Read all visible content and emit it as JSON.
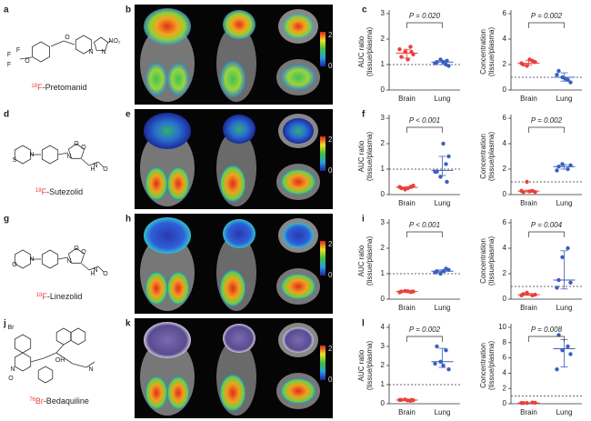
{
  "rows": [
    {
      "structure_letter": "a",
      "image_letter": "b",
      "isotope": "18",
      "element": "F",
      "name": "-Pretomanid",
      "atoms": [
        "F",
        "F",
        "F",
        "O",
        "O",
        "N",
        "N",
        "NO₂"
      ],
      "colorbar_ticks": [
        2,
        0
      ]
    },
    {
      "structure_letter": "d",
      "image_letter": "e",
      "isotope": "18",
      "element": "F",
      "name": "-Sutezolid",
      "atoms": [
        "S",
        "N",
        "N",
        "O",
        "O",
        "H",
        "N",
        "O"
      ],
      "colorbar_ticks": [
        2,
        0
      ]
    },
    {
      "structure_letter": "g",
      "image_letter": "h",
      "isotope": "18",
      "element": "F",
      "name": "-Linezolid",
      "atoms": [
        "O",
        "N",
        "N",
        "O",
        "O",
        "H",
        "N",
        "O"
      ],
      "colorbar_ticks": [
        2,
        0
      ]
    },
    {
      "structure_letter": "j",
      "image_letter": "k",
      "isotope": "76",
      "element": "Br",
      "name": "-Bedaquiline",
      "atoms": [
        "Br",
        "N",
        "O",
        "OH",
        "N"
      ],
      "colorbar_ticks": [
        2,
        0
      ]
    }
  ],
  "chart_data": [
    {
      "type": "strip",
      "letter": "c",
      "ylabel": [
        "AUC ratio",
        "(tissue/plasma)"
      ],
      "categories": [
        "Brain",
        "Lung"
      ],
      "ylim": [
        0,
        3
      ],
      "yticks": [
        0,
        1,
        2,
        3
      ],
      "ref_line": 1,
      "annotation": "P = 0.020",
      "series": [
        {
          "name": "Brain",
          "color": "#e8413c",
          "values": [
            1.3,
            1.7,
            1.5,
            1.4,
            1.6,
            1.2,
            1.5
          ],
          "median": 1.45,
          "range": [
            1.25,
            1.6
          ]
        },
        {
          "name": "Lung",
          "color": "#3b5fc0",
          "values": [
            1.1,
            1.0,
            1.2,
            0.95,
            1.05,
            1.1,
            1.15
          ],
          "median": 1.1,
          "range": [
            1.0,
            1.15
          ]
        }
      ]
    },
    {
      "type": "strip",
      "ylabel": [
        "Concentration",
        "(tissue/plasma)"
      ],
      "categories": [
        "Brain",
        "Lung"
      ],
      "ylim": [
        0,
        6
      ],
      "yticks": [
        0,
        2,
        4,
        6
      ],
      "ref_line": 1,
      "annotation": "P = 0.002",
      "series": [
        {
          "name": "Brain",
          "color": "#e8413c",
          "values": [
            2.0,
            2.3,
            1.9,
            2.2,
            2.1,
            2.4
          ],
          "median": 2.1,
          "range": [
            1.95,
            2.3
          ]
        },
        {
          "name": "Lung",
          "color": "#3b5fc0",
          "values": [
            1.5,
            0.8,
            1.0,
            0.6,
            1.2,
            0.9
          ],
          "median": 1.0,
          "range": [
            0.7,
            1.35
          ]
        }
      ]
    },
    {
      "type": "strip",
      "letter": "f",
      "ylabel": [
        "AUC ratio",
        "(tissue/plasma)"
      ],
      "categories": [
        "Brain",
        "Lung"
      ],
      "ylim": [
        0,
        3
      ],
      "yticks": [
        0,
        1,
        2,
        3
      ],
      "ref_line": 1,
      "annotation": "P < 0.001",
      "series": [
        {
          "name": "Brain",
          "color": "#e8413c",
          "values": [
            0.25,
            0.3,
            0.2,
            0.35,
            0.3,
            0.25,
            0.3
          ],
          "median": 0.28,
          "range": [
            0.25,
            0.3
          ]
        },
        {
          "name": "Lung",
          "color": "#3b5fc0",
          "values": [
            0.9,
            1.2,
            0.7,
            1.5,
            0.9,
            2.0,
            0.5
          ],
          "median": 0.95,
          "range": [
            0.75,
            1.5
          ]
        }
      ]
    },
    {
      "type": "strip",
      "ylabel": [
        "Concentration",
        "(tissue/plasma)"
      ],
      "categories": [
        "Brain",
        "Lung"
      ],
      "ylim": [
        0,
        6
      ],
      "yticks": [
        0,
        2,
        4,
        6
      ],
      "ref_line": 1,
      "annotation": "P = 0.002",
      "series": [
        {
          "name": "Brain",
          "color": "#e8413c",
          "values": [
            0.2,
            0.3,
            1.0,
            0.2,
            0.3,
            0.25
          ],
          "median": 0.28,
          "range": [
            0.2,
            0.35
          ]
        },
        {
          "name": "Lung",
          "color": "#3b5fc0",
          "values": [
            2.2,
            2.0,
            2.4,
            2.3,
            1.9
          ],
          "median": 2.2,
          "range": [
            2.0,
            2.35
          ]
        }
      ]
    },
    {
      "type": "strip",
      "letter": "i",
      "ylabel": [
        "AUC ratio",
        "(tissue/plasma)"
      ],
      "categories": [
        "Brain",
        "Lung"
      ],
      "ylim": [
        0,
        3
      ],
      "yticks": [
        0,
        1,
        2,
        3
      ],
      "ref_line": 1,
      "annotation": "P < 0.001",
      "series": [
        {
          "name": "Brain",
          "color": "#e8413c",
          "values": [
            0.3,
            0.28,
            0.32,
            0.3,
            0.27,
            0.31,
            0.29
          ],
          "median": 0.3,
          "range": [
            0.28,
            0.31
          ]
        },
        {
          "name": "Lung",
          "color": "#3b5fc0",
          "values": [
            1.1,
            1.2,
            1.0,
            1.15,
            1.05,
            1.1
          ],
          "median": 1.1,
          "range": [
            1.05,
            1.15
          ]
        }
      ]
    },
    {
      "type": "strip",
      "ylabel": [
        "Concentration",
        "(tissue/plasma)"
      ],
      "categories": [
        "Brain",
        "Lung"
      ],
      "ylim": [
        0,
        6
      ],
      "yticks": [
        0,
        2,
        4,
        6
      ],
      "ref_line": 1,
      "annotation": "P = 0.004",
      "series": [
        {
          "name": "Brain",
          "color": "#e8413c",
          "values": [
            0.4,
            0.3,
            0.5,
            0.35,
            0.3
          ],
          "median": 0.35,
          "range": [
            0.3,
            0.45
          ]
        },
        {
          "name": "Lung",
          "color": "#3b5fc0",
          "values": [
            1.5,
            4.0,
            3.3,
            1.3,
            0.9
          ],
          "median": 1.5,
          "range": [
            0.8,
            3.8
          ]
        }
      ]
    },
    {
      "type": "strip",
      "letter": "l",
      "ylabel": [
        "AUC ratio",
        "(tissue/plasma)"
      ],
      "categories": [
        "Brain",
        "Lung"
      ],
      "ylim": [
        0,
        4
      ],
      "yticks": [
        0,
        1,
        2,
        3,
        4
      ],
      "ref_line": 1,
      "annotation": "P = 0.002",
      "series": [
        {
          "name": "Brain",
          "color": "#e8413c",
          "values": [
            0.2,
            0.15,
            0.22,
            0.18,
            0.2,
            0.17,
            0.2
          ],
          "median": 0.19,
          "range": [
            0.17,
            0.2
          ]
        },
        {
          "name": "Lung",
          "color": "#3b5fc0",
          "values": [
            3.0,
            2.8,
            2.2,
            1.8,
            2.1,
            2.0
          ],
          "median": 2.2,
          "range": [
            1.9,
            2.9
          ]
        }
      ]
    },
    {
      "type": "strip",
      "ylabel": [
        "Concentration",
        "(tissue/plasma)"
      ],
      "categories": [
        "Brain",
        "Lung"
      ],
      "ylim": [
        0,
        10
      ],
      "yticks": [
        0,
        2,
        4,
        6,
        8,
        10
      ],
      "ref_line": 1,
      "annotation": "P = 0.008",
      "series": [
        {
          "name": "Brain",
          "color": "#e8413c",
          "values": [
            0.1,
            0.15,
            0.1,
            0.12,
            0.1
          ],
          "median": 0.1,
          "range": [
            0.1,
            0.13
          ]
        },
        {
          "name": "Lung",
          "color": "#3b5fc0",
          "values": [
            9.0,
            7.5,
            7.0,
            6.5,
            4.5
          ],
          "median": 7.2,
          "range": [
            4.8,
            8.4
          ]
        }
      ]
    }
  ]
}
